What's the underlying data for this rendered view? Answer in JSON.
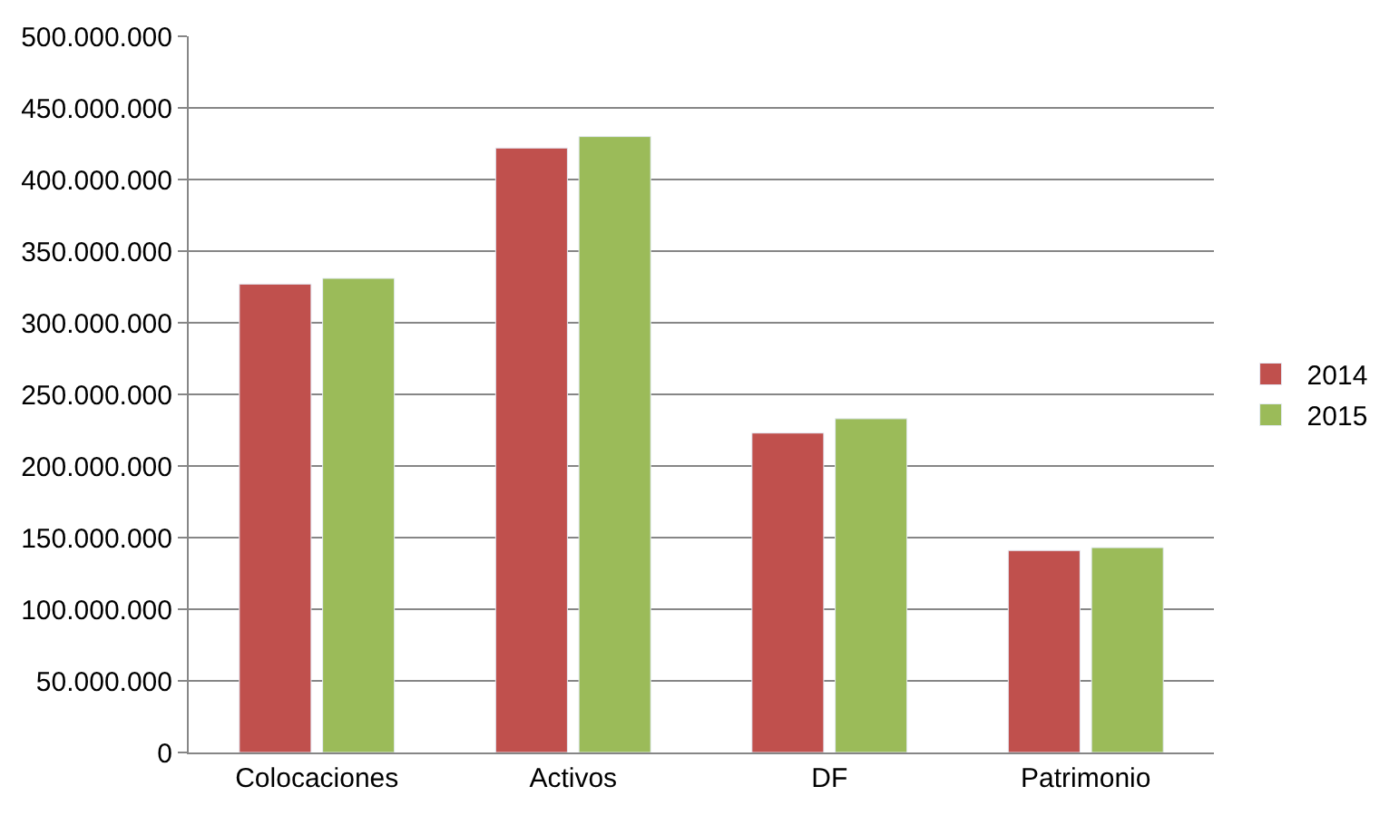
{
  "chart_data": {
    "type": "bar",
    "categories": [
      "Colocaciones",
      "Activos",
      "DF",
      "Patrimonio"
    ],
    "series": [
      {
        "name": "2014",
        "color": "#c0504d",
        "values": [
          327000000,
          422000000,
          223000000,
          141000000
        ]
      },
      {
        "name": "2015",
        "color": "#9bbb59",
        "values": [
          331000000,
          430000000,
          233000000,
          143000000
        ]
      }
    ],
    "ylim": [
      0,
      500000000
    ],
    "yticks": [
      {
        "value": 0,
        "label": "0"
      },
      {
        "value": 50000000,
        "label": "50.000.000"
      },
      {
        "value": 100000000,
        "label": "100.000.000"
      },
      {
        "value": 150000000,
        "label": "150.000.000"
      },
      {
        "value": 200000000,
        "label": "200.000.000"
      },
      {
        "value": 250000000,
        "label": "250.000.000"
      },
      {
        "value": 300000000,
        "label": "300.000.000"
      },
      {
        "value": 350000000,
        "label": "350.000.000"
      },
      {
        "value": 400000000,
        "label": "400.000.000"
      },
      {
        "value": 450000000,
        "label": "450.000.000"
      },
      {
        "value": 500000000,
        "label": "500.000.000"
      }
    ],
    "grid": "y",
    "legend": "right"
  }
}
